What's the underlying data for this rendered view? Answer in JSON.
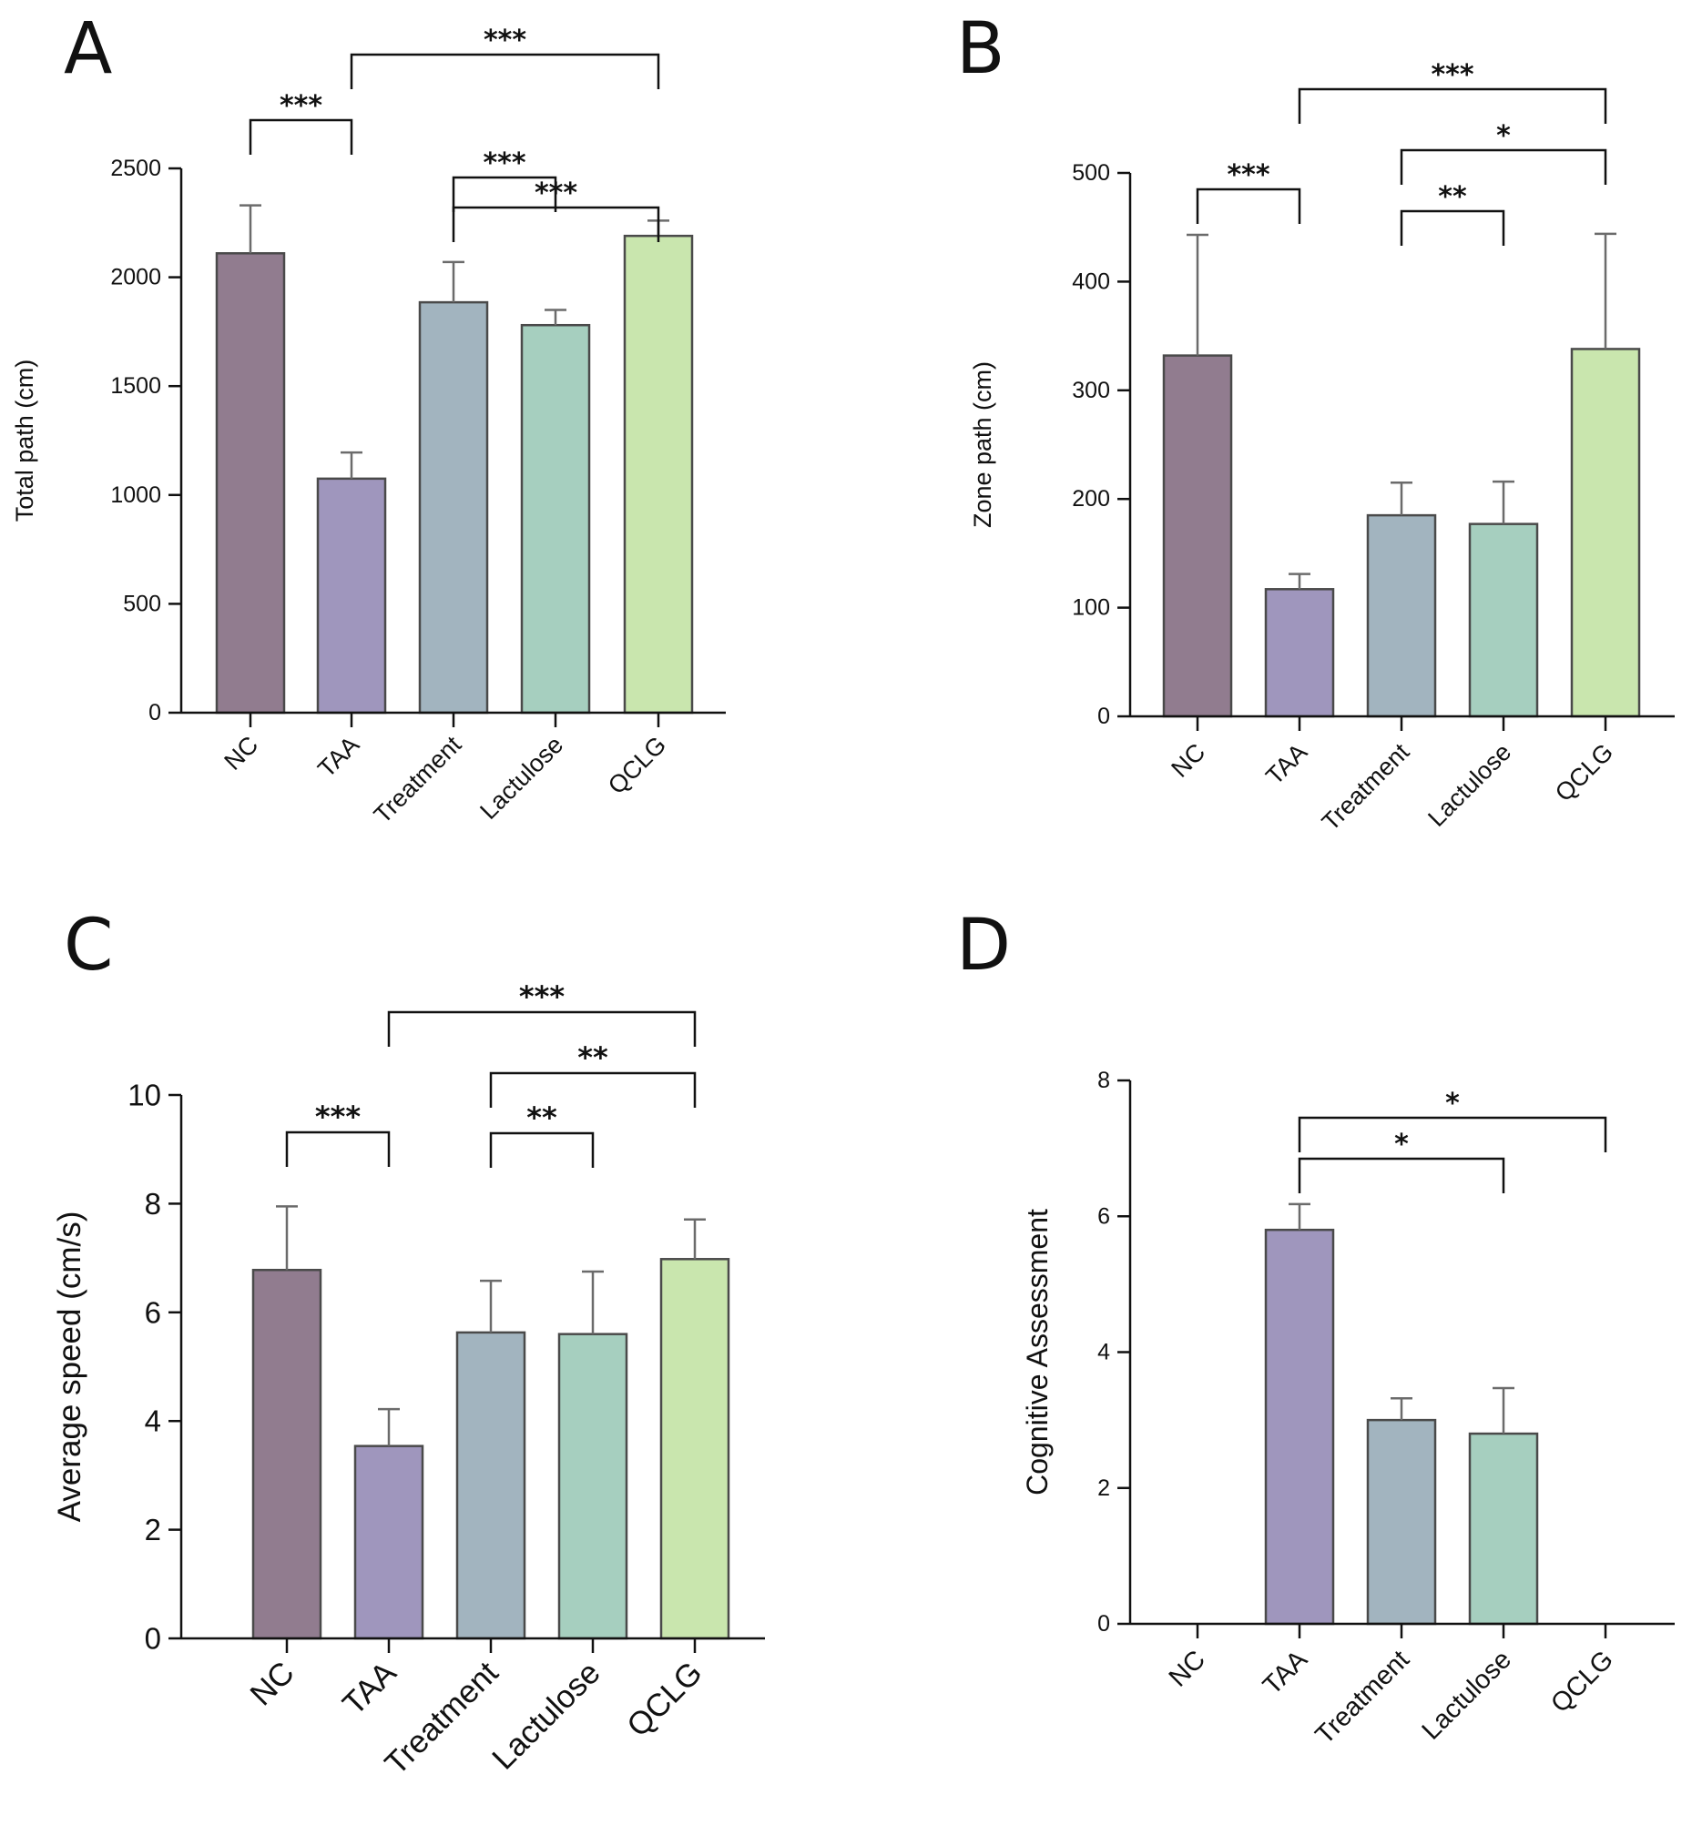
{
  "figure": {
    "categories": [
      "NC",
      "TAA",
      "Treatment",
      "Lactulose",
      "QCLG"
    ]
  },
  "colors": {
    "bars": [
      "#917c8f",
      "#9f96bd",
      "#a2b4bf",
      "#a6cfbf",
      "#c9e6ae"
    ],
    "bar_stroke": "#4a4a4a",
    "error": "#6b6b6b",
    "axis": "#111111"
  },
  "chart_data": [
    {
      "panel": "A",
      "type": "bar",
      "categories": [
        "NC",
        "TAA",
        "Treatment",
        "Lactulose",
        "QCLG"
      ],
      "values": [
        2110,
        1075,
        1885,
        1780,
        2190
      ],
      "errors": [
        220,
        120,
        185,
        70,
        70
      ],
      "ylabel": "Total path (cm)",
      "xlabel": "",
      "ylim": [
        0,
        2500
      ],
      "yticks": [
        0,
        500,
        1000,
        1500,
        2000,
        2500
      ],
      "ytick_labels": [
        "0",
        "500",
        "1000",
        "1500",
        "2000",
        "2500"
      ],
      "significance": [
        {
          "from": 0,
          "to": 1,
          "label": "***"
        },
        {
          "from": 2,
          "to": 3,
          "label": "***"
        },
        {
          "from": 2,
          "to": 4,
          "label": "***"
        },
        {
          "from": 1,
          "to": 4,
          "label": "***"
        }
      ]
    },
    {
      "panel": "B",
      "type": "bar",
      "categories": [
        "NC",
        "TAA",
        "Treatment",
        "Lactulose",
        "QCLG"
      ],
      "values": [
        332,
        117,
        185,
        177,
        338
      ],
      "errors": [
        111,
        14,
        30,
        39,
        106
      ],
      "ylabel": "Zone path (cm)",
      "xlabel": "",
      "ylim": [
        0,
        500
      ],
      "yticks": [
        0,
        100,
        200,
        300,
        400,
        500
      ],
      "ytick_labels": [
        "0",
        "100",
        "200",
        "300",
        "400",
        "500"
      ],
      "significance": [
        {
          "from": 0,
          "to": 1,
          "label": "***"
        },
        {
          "from": 2,
          "to": 3,
          "label": "**"
        },
        {
          "from": 2,
          "to": 4,
          "label": "*"
        },
        {
          "from": 1,
          "to": 4,
          "label": "***"
        }
      ]
    },
    {
      "panel": "C",
      "type": "bar",
      "categories": [
        "NC",
        "TAA",
        "Treatment",
        "Lactulose",
        "QCLG"
      ],
      "values": [
        6.78,
        3.54,
        5.63,
        5.6,
        6.98
      ],
      "errors": [
        1.17,
        0.68,
        0.95,
        1.15,
        0.73
      ],
      "ylabel": "Average speed (cm/s)",
      "xlabel": "",
      "ylim": [
        0,
        10
      ],
      "yticks": [
        0,
        2,
        4,
        6,
        8,
        10
      ],
      "ytick_labels": [
        "0",
        "2",
        "4",
        "6",
        "8",
        "10"
      ],
      "significance": [
        {
          "from": 0,
          "to": 1,
          "label": "***"
        },
        {
          "from": 2,
          "to": 3,
          "label": "**"
        },
        {
          "from": 2,
          "to": 4,
          "label": "**"
        },
        {
          "from": 1,
          "to": 4,
          "label": "***"
        }
      ]
    },
    {
      "panel": "D",
      "type": "bar",
      "categories": [
        "NC",
        "TAA",
        "Treatment",
        "Lactulose",
        "QCLG"
      ],
      "values": [
        0,
        5.8,
        3.0,
        2.8,
        0
      ],
      "errors": [
        0,
        0.38,
        0.32,
        0.67,
        0
      ],
      "ylabel": "Cognitive Assessment",
      "xlabel": "",
      "ylim": [
        0,
        8
      ],
      "yticks": [
        0,
        2,
        4,
        6,
        8
      ],
      "ytick_labels": [
        "0",
        "2",
        "4",
        "6",
        "8"
      ],
      "significance": [
        {
          "from": 1,
          "to": 3,
          "label": "*"
        },
        {
          "from": 1,
          "to": 4,
          "label": "*"
        }
      ]
    }
  ]
}
